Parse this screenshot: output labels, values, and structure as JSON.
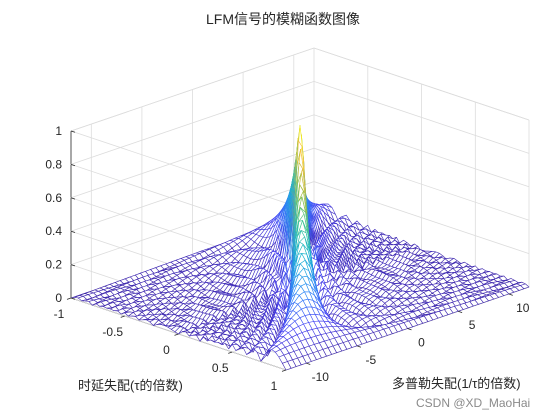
{
  "chart_data": {
    "type": "surface3d",
    "title": "LFM信号的模糊函数图像",
    "xlabel": "时延失配(τ的倍数)",
    "ylabel": "多普勒失配(1/τ的倍数)",
    "zlabel": "",
    "xlim": [
      -1,
      1
    ],
    "ylim": [
      -12,
      12
    ],
    "zlim": [
      0,
      1
    ],
    "x_ticks": [
      "-1",
      "-0.5",
      "0",
      "0.5",
      "1"
    ],
    "y_ticks": [
      "-10",
      "-5",
      "0",
      "5",
      "10"
    ],
    "z_ticks": [
      "0",
      "0.2",
      "0.4",
      "0.6",
      "0.8",
      "1"
    ],
    "peak": {
      "x": 0,
      "y": 0,
      "z": 1
    },
    "ridge_slope_doppler_per_delay": 10,
    "colormap": [
      "#3e26a8",
      "#4743f4",
      "#2e87f7",
      "#17b1d4",
      "#38c691",
      "#a7bd3a",
      "#fdbc3c",
      "#f9fb15"
    ],
    "grid": true,
    "view": {
      "azimuth": -37.5,
      "elevation": 30
    }
  },
  "watermark": "CSDN @XD_MaoHai"
}
